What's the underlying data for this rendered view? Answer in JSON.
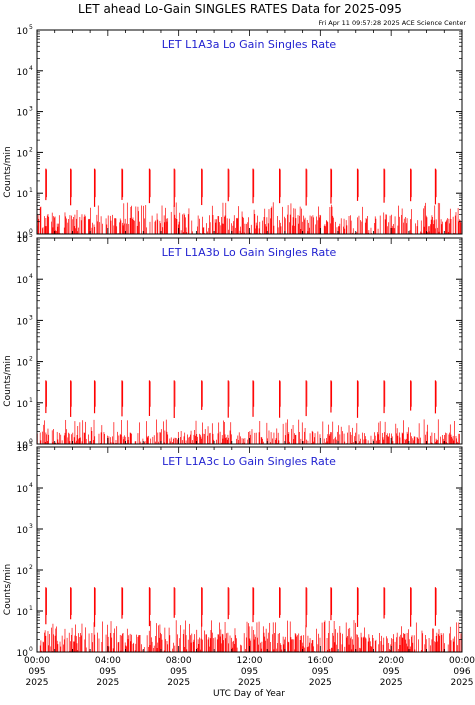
{
  "figure": {
    "title": "LET ahead Lo-Gain SINGLES RATES Data for 2025-095",
    "timestamp": "Fri Apr 11 09:57:28 2025 ACE Science Center",
    "xlabel": "UTC Day of Year",
    "ylabel": "Counts/min"
  },
  "colors": {
    "data": "#ff0000",
    "panel_title": "#1f1fd0",
    "axes": "#000000"
  },
  "chart_data": [
    {
      "type": "line",
      "title": "LET L1A3a Lo Gain Singles Rate",
      "ylabel": "Counts/min",
      "y_scale": "log",
      "ylim": [
        1,
        100000
      ],
      "yticks": [
        {
          "base": "10",
          "exp": "0"
        },
        {
          "base": "10",
          "exp": "1"
        },
        {
          "base": "10",
          "exp": "2"
        },
        {
          "base": "10",
          "exp": "3"
        },
        {
          "base": "10",
          "exp": "4"
        },
        {
          "base": "10",
          "exp": "5"
        }
      ],
      "xlim_hours": [
        0,
        24
      ],
      "baseline_range": [
        1,
        3
      ],
      "spike_hours": [
        0.5,
        1.9,
        3.25,
        4.8,
        6.35,
        7.75,
        9.3,
        10.8,
        12.2,
        13.7,
        15.2,
        16.6,
        18.1,
        19.6,
        21.1,
        22.5
      ],
      "spike_peak": 40
    },
    {
      "type": "line",
      "title": "LET L1A3b Lo Gain Singles Rate",
      "ylabel": "Counts/min",
      "y_scale": "log",
      "ylim": [
        1,
        100000
      ],
      "yticks": [
        {
          "base": "10",
          "exp": "0"
        },
        {
          "base": "10",
          "exp": "1"
        },
        {
          "base": "10",
          "exp": "2"
        },
        {
          "base": "10",
          "exp": "3"
        },
        {
          "base": "10",
          "exp": "4"
        },
        {
          "base": "10",
          "exp": "5"
        }
      ],
      "xlim_hours": [
        0,
        24
      ],
      "baseline_range": [
        1,
        2
      ],
      "spike_hours": [
        0.5,
        1.9,
        3.25,
        4.8,
        6.35,
        7.75,
        9.3,
        10.8,
        12.2,
        13.7,
        15.2,
        16.6,
        18.1,
        19.6,
        21.1,
        22.5
      ],
      "spike_peak": 35
    },
    {
      "type": "line",
      "title": "LET L1A3c Lo Gain Singles Rate",
      "ylabel": "Counts/min",
      "y_scale": "log",
      "ylim": [
        1,
        100000
      ],
      "yticks": [
        {
          "base": "10",
          "exp": "0"
        },
        {
          "base": "10",
          "exp": "1"
        },
        {
          "base": "10",
          "exp": "2"
        },
        {
          "base": "10",
          "exp": "3"
        },
        {
          "base": "10",
          "exp": "4"
        },
        {
          "base": "10",
          "exp": "5"
        }
      ],
      "xlim_hours": [
        0,
        24
      ],
      "baseline_range": [
        1,
        3
      ],
      "spike_hours": [
        0.5,
        1.9,
        3.25,
        4.8,
        6.35,
        7.75,
        9.3,
        10.8,
        12.2,
        13.7,
        15.2,
        16.6,
        18.1,
        19.6,
        21.1,
        22.5
      ],
      "spike_peak": 38
    }
  ],
  "xticks": [
    {
      "time": "00:00",
      "doy": "095",
      "year": "2025"
    },
    {
      "time": "04:00",
      "doy": "095",
      "year": "2025"
    },
    {
      "time": "08:00",
      "doy": "095",
      "year": "2025"
    },
    {
      "time": "12:00",
      "doy": "095",
      "year": "2025"
    },
    {
      "time": "16:00",
      "doy": "095",
      "year": "2025"
    },
    {
      "time": "20:00",
      "doy": "095",
      "year": "2025"
    },
    {
      "time": "00:00",
      "doy": "096",
      "year": "2025"
    }
  ]
}
